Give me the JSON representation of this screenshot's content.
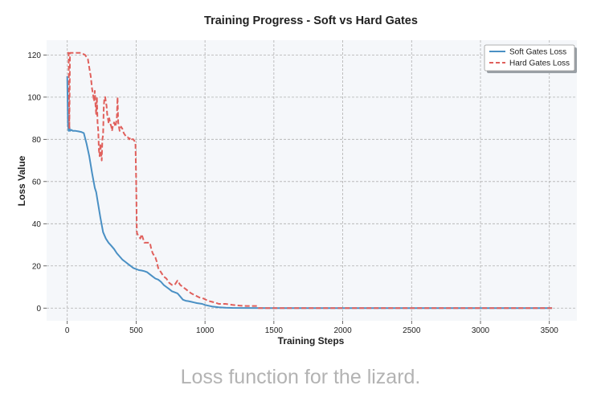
{
  "caption": "Loss function for the lizard.",
  "colors": {
    "soft": "#4a90c4",
    "hard": "#e0605c",
    "plot_bg": "#f5f7fa",
    "grid": "#b0b0b0"
  },
  "chart_data": {
    "type": "line",
    "title": "Training Progress - Soft vs Hard Gates",
    "xlabel": "Training Steps",
    "ylabel": "Loss Value",
    "xlim": [
      -150,
      3700
    ],
    "ylim": [
      -6,
      127
    ],
    "xticks": [
      0,
      500,
      1000,
      1500,
      2000,
      2500,
      3000,
      3500
    ],
    "yticks": [
      0,
      20,
      40,
      60,
      80,
      100,
      120
    ],
    "grid": true,
    "legend_position": "top-right",
    "series": [
      {
        "name": "Soft Gates Loss",
        "style": "solid",
        "x": [
          0,
          5,
          10,
          15,
          20,
          30,
          40,
          60,
          80,
          100,
          120,
          140,
          160,
          180,
          200,
          210,
          220,
          240,
          260,
          280,
          300,
          320,
          340,
          360,
          380,
          400,
          420,
          440,
          460,
          480,
          500,
          520,
          540,
          560,
          580,
          600,
          620,
          640,
          660,
          680,
          700,
          720,
          740,
          760,
          780,
          800,
          820,
          840,
          860,
          880,
          900,
          920,
          940,
          960,
          980,
          1000,
          1050,
          1100,
          1150,
          1200,
          1300,
          1500,
          2000,
          2500,
          3000,
          3520
        ],
        "y": [
          110,
          87,
          84,
          86,
          84,
          84.5,
          84,
          84,
          83.8,
          83.5,
          83,
          78,
          72,
          64,
          57,
          55,
          51,
          43,
          36,
          33,
          31,
          29.5,
          28,
          26,
          24.5,
          23,
          22,
          21,
          20,
          19,
          18.5,
          18,
          17.8,
          17.5,
          17,
          16,
          15,
          14,
          13.5,
          12.5,
          11,
          10,
          9,
          8,
          7.5,
          7,
          5.5,
          4,
          3.5,
          3.3,
          3,
          2.7,
          2.4,
          2.2,
          2,
          1.5,
          0.8,
          0.4,
          0.2,
          0.1,
          0.05,
          0.02,
          0,
          0,
          0,
          0
        ]
      },
      {
        "name": "Hard Gates Loss",
        "style": "dashed",
        "x": [
          0,
          10,
          15,
          20,
          30,
          60,
          100,
          130,
          150,
          160,
          170,
          180,
          190,
          195,
          200,
          205,
          210,
          215,
          220,
          225,
          230,
          235,
          240,
          245,
          250,
          255,
          260,
          265,
          270,
          275,
          280,
          285,
          290,
          295,
          300,
          305,
          310,
          315,
          320,
          325,
          330,
          340,
          350,
          360,
          365,
          370,
          375,
          380,
          390,
          400,
          410,
          420,
          430,
          440,
          450,
          460,
          470,
          480,
          490,
          495,
          500,
          505,
          510,
          520,
          530,
          540,
          560,
          580,
          600,
          610,
          620,
          630,
          640,
          650,
          660,
          680,
          700,
          720,
          740,
          760,
          780,
          800,
          820,
          840,
          860,
          880,
          900,
          930,
          960,
          990,
          1020,
          1050,
          1080,
          1100,
          1150,
          1200,
          1250,
          1300,
          1350,
          1380,
          1390,
          1500,
          2000,
          2500,
          3000,
          3520
        ],
        "y": [
          121,
          121,
          85,
          121,
          121,
          121,
          121,
          120,
          118,
          114,
          110,
          104,
          100,
          98,
          103,
          96,
          92,
          100,
          88,
          84,
          75,
          72,
          78,
          74,
          70,
          80,
          82,
          95,
          100,
          100,
          98,
          96,
          92,
          90,
          88,
          90,
          88,
          87,
          86,
          84,
          86,
          88,
          86,
          90,
          100,
          88,
          86,
          84,
          86,
          85,
          83,
          82,
          81,
          81,
          80,
          81,
          80,
          80,
          79,
          78,
          62,
          36,
          35,
          34,
          33,
          35,
          31,
          31,
          31,
          28,
          26,
          25,
          24,
          22,
          19,
          17,
          15,
          14,
          12,
          11,
          11,
          13,
          11,
          10,
          9,
          8,
          7,
          6,
          5,
          4.5,
          3.5,
          3,
          2.5,
          2,
          2,
          1.5,
          1.2,
          1,
          1,
          1,
          0,
          0,
          0,
          0,
          0,
          0
        ]
      }
    ]
  }
}
